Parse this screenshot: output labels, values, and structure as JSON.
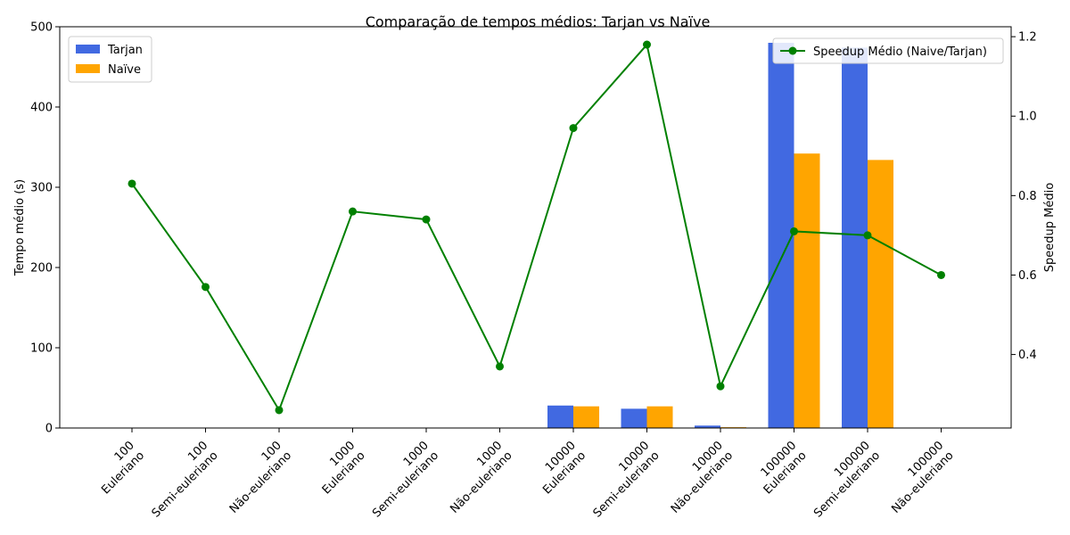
{
  "chart_data": {
    "type": "bar",
    "title": "Comparação de tempos médios: Tarjan vs Naïve",
    "ylabel": "Tempo médio (s)",
    "y2label": "Speedup Médio",
    "xlabel": "",
    "ylim": [
      0,
      500
    ],
    "y2lim": [
      0.215,
      1.225
    ],
    "yticks": [
      "0",
      "100",
      "200",
      "300",
      "400",
      "500"
    ],
    "y2ticks": [
      "0.4",
      "0.6",
      "0.8",
      "1.0",
      "1.2"
    ],
    "grid": false,
    "categories": [
      [
        "100",
        "Euleriano"
      ],
      [
        "100",
        "Semi-euleriano"
      ],
      [
        "100",
        "Não-euleriano"
      ],
      [
        "1000",
        "Euleriano"
      ],
      [
        "1000",
        "Semi-euleriano"
      ],
      [
        "1000",
        "Não-euleriano"
      ],
      [
        "10000",
        "Euleriano"
      ],
      [
        "10000",
        "Semi-euleriano"
      ],
      [
        "10000",
        "Não-euleriano"
      ],
      [
        "100000",
        "Euleriano"
      ],
      [
        "100000",
        "Semi-euleriano"
      ],
      [
        "100000",
        "Não-euleriano"
      ]
    ],
    "series": [
      {
        "name": "Tarjan",
        "type": "bar",
        "axis": "left",
        "color": "#4169e1",
        "values": [
          0.01,
          0.02,
          0.01,
          0.3,
          0.3,
          0.2,
          28,
          24,
          3,
          480,
          474,
          0
        ]
      },
      {
        "name": "Naïve",
        "type": "bar",
        "axis": "left",
        "color": "#ffa500",
        "values": [
          0.01,
          0.01,
          0.003,
          0.2,
          0.2,
          0.07,
          27,
          27,
          1,
          342,
          334,
          0
        ]
      },
      {
        "name": "Speedup Médio (Naive/Tarjan)",
        "type": "line",
        "axis": "right",
        "color": "#008000",
        "values": [
          0.83,
          0.57,
          0.26,
          0.76,
          0.74,
          0.37,
          0.97,
          1.18,
          0.32,
          0.71,
          0.7,
          0.6
        ]
      }
    ],
    "legend_left_placement": "top-left",
    "legend_right_placement": "top-right"
  }
}
